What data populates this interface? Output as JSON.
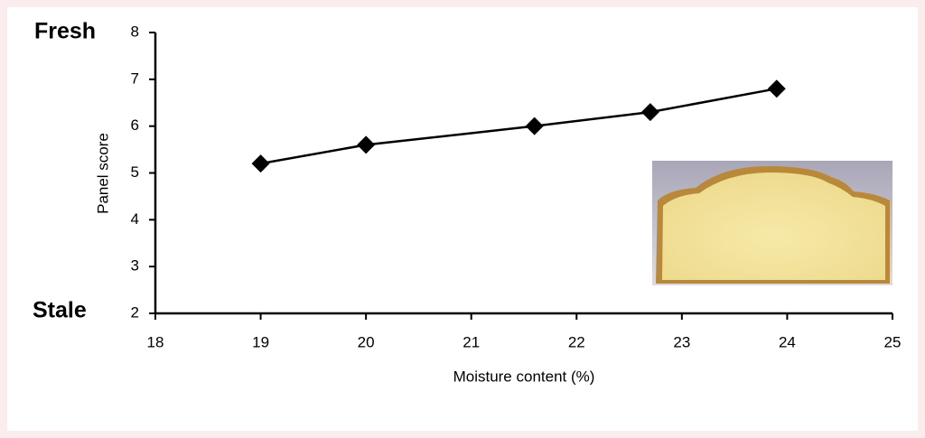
{
  "chart_data": {
    "type": "line",
    "xlabel": "Moisture content (%)",
    "ylabel": "Panel score",
    "annotations": [
      "Fresh",
      "Stale"
    ],
    "x": [
      19,
      20,
      21.6,
      22.7,
      23.9
    ],
    "series": [
      {
        "values": [
          5.2,
          5.6,
          6.0,
          6.3,
          6.8
        ],
        "color": "#000000"
      }
    ],
    "xlim": [
      18,
      25
    ],
    "xticks": [
      18,
      19,
      20,
      21,
      22,
      23,
      24,
      25
    ],
    "ylim": [
      2,
      8
    ],
    "yticks": [
      2,
      3,
      4,
      5,
      6,
      7,
      8
    ]
  }
}
